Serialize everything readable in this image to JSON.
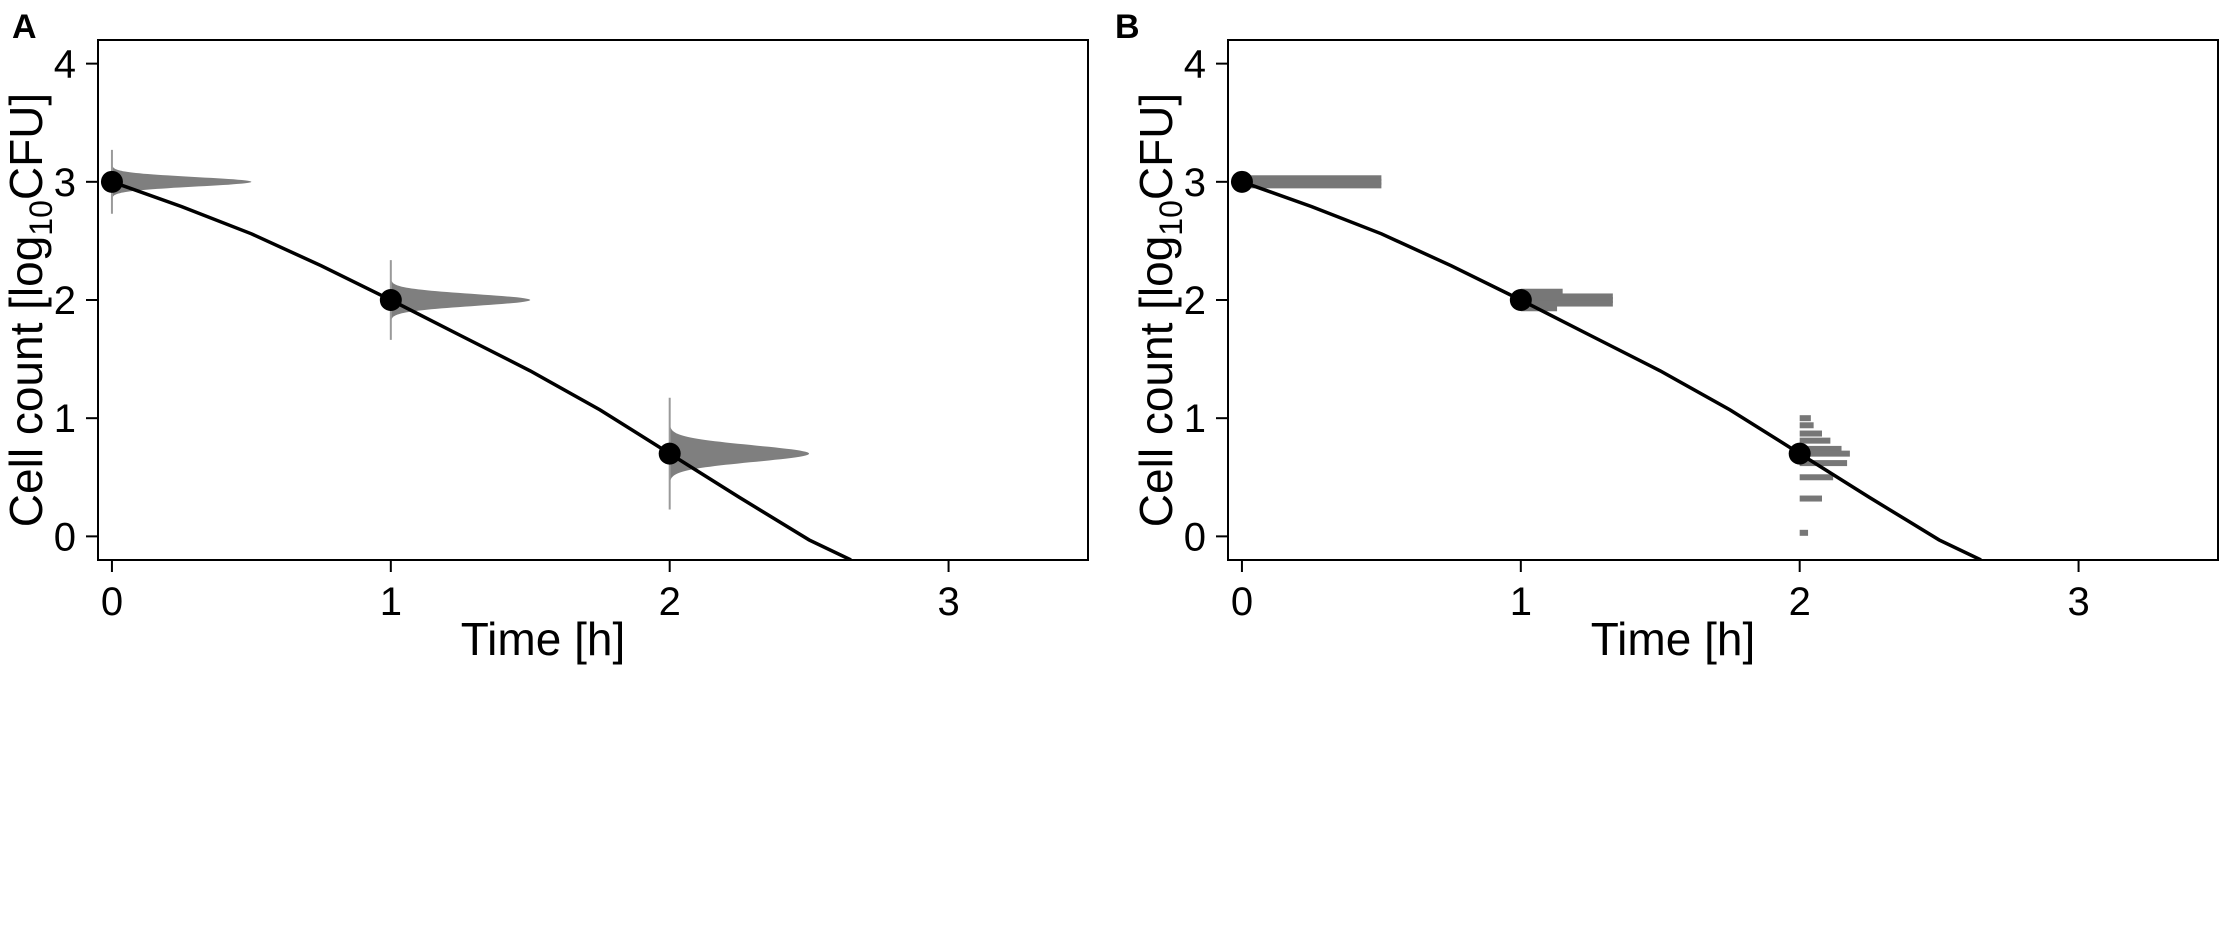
{
  "chart_data": [
    {
      "type": "line",
      "panel": "A",
      "xlabel": "Time [h]",
      "ylabel_main": "Cell count [log",
      "ylabel_sub": "10",
      "ylabel_end": "CFU]",
      "xlim": [
        -0.05,
        3.5
      ],
      "ylim": [
        -0.2,
        4.2
      ],
      "xticks": [
        0,
        1,
        2,
        3
      ],
      "yticks": [
        0,
        1,
        2,
        3,
        4
      ],
      "grid": false,
      "curve": {
        "x": [
          0,
          0.25,
          0.5,
          0.75,
          1.0,
          1.25,
          1.5,
          1.75,
          2.0,
          2.25,
          2.5,
          2.65
        ],
        "y": [
          3.0,
          2.79,
          2.56,
          2.29,
          2.0,
          1.7,
          1.4,
          1.07,
          0.7,
          0.33,
          -0.03,
          -0.2
        ]
      },
      "points": {
        "x": [
          0,
          1,
          2
        ],
        "y": [
          3.0,
          2.0,
          0.7
        ]
      },
      "distributions": {
        "style": "density",
        "items": [
          {
            "x": 0,
            "center": 3.0,
            "sd": 0.04,
            "max_width": 0.5
          },
          {
            "x": 1,
            "center": 2.0,
            "sd": 0.05,
            "max_width": 0.5
          },
          {
            "x": 2,
            "center": 0.7,
            "sd": 0.07,
            "max_width": 0.5
          }
        ]
      }
    },
    {
      "type": "line",
      "panel": "B",
      "xlabel": "Time [h]",
      "ylabel_main": "Cell count [log",
      "ylabel_sub": "10",
      "ylabel_end": "CFU]",
      "xlim": [
        -0.05,
        3.5
      ],
      "ylim": [
        -0.2,
        4.2
      ],
      "xticks": [
        0,
        1,
        2,
        3
      ],
      "yticks": [
        0,
        1,
        2,
        3,
        4
      ],
      "grid": false,
      "curve": {
        "x": [
          0,
          0.25,
          0.5,
          0.75,
          1.0,
          1.25,
          1.5,
          1.75,
          2.0,
          2.25,
          2.5,
          2.65
        ],
        "y": [
          3.0,
          2.79,
          2.56,
          2.29,
          2.0,
          1.7,
          1.4,
          1.07,
          0.7,
          0.33,
          -0.03,
          -0.2
        ]
      },
      "points": {
        "x": [
          0,
          1,
          2
        ],
        "y": [
          3.0,
          2.0,
          0.7
        ]
      },
      "distributions": {
        "style": "histogram",
        "items": [
          {
            "x": 0,
            "bars": [
              {
                "y": 3.03,
                "w": 0.5
              },
              {
                "y": 3.0,
                "w": 0.5
              },
              {
                "y": 2.97,
                "w": 0.5
              }
            ]
          },
          {
            "x": 1,
            "bars": [
              {
                "y": 2.07,
                "w": 0.15
              },
              {
                "y": 2.03,
                "w": 0.33
              },
              {
                "y": 2.0,
                "w": 0.33
              },
              {
                "y": 1.97,
                "w": 0.33
              },
              {
                "y": 1.93,
                "w": 0.13
              }
            ]
          },
          {
            "x": 2,
            "bars": [
              {
                "y": 1.0,
                "w": 0.04
              },
              {
                "y": 0.94,
                "w": 0.05
              },
              {
                "y": 0.87,
                "w": 0.08
              },
              {
                "y": 0.81,
                "w": 0.11
              },
              {
                "y": 0.74,
                "w": 0.15
              },
              {
                "y": 0.7,
                "w": 0.18
              },
              {
                "y": 0.62,
                "w": 0.17
              },
              {
                "y": 0.5,
                "w": 0.12
              },
              {
                "y": 0.32,
                "w": 0.08
              },
              {
                "y": 0.03,
                "w": 0.03
              }
            ]
          }
        ]
      }
    }
  ],
  "panels": {
    "a_letter": "A",
    "b_letter": "B"
  }
}
